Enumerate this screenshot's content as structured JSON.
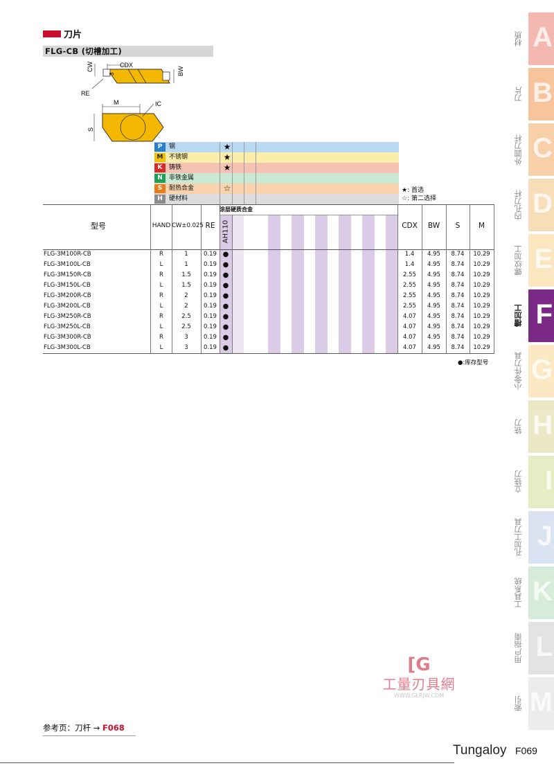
{
  "header": {
    "title": "刀片",
    "subtitle": "FLG-CB (切槽加工)"
  },
  "drawing": {
    "labels": {
      "cw": "CW",
      "cdx": "CDX",
      "bw": "BW",
      "re": "RE",
      "three": "3",
      "m": "M",
      "ic": "IC",
      "s": "S"
    },
    "insert_color": "#f5b800"
  },
  "materials": [
    {
      "code": "P",
      "name": "钢",
      "mark": "★",
      "color": "#2a7fc8",
      "bg": "#b9d9f2"
    },
    {
      "code": "M",
      "name": "不锈钢",
      "mark": "★",
      "color": "#f2c200",
      "bg": "#fbeeaa"
    },
    {
      "code": "K",
      "name": "铸铁",
      "mark": "★",
      "color": "#d62a2a",
      "bg": "#f6c2b3"
    },
    {
      "code": "N",
      "name": "非铁金属",
      "mark": "",
      "color": "#21a05a",
      "bg": "#c9e8d4"
    },
    {
      "code": "S",
      "name": "耐热合金",
      "mark": "☆",
      "color": "#e87b1c",
      "bg": "#f9d3ad"
    },
    {
      "code": "H",
      "name": "硬材料",
      "mark": "",
      "color": "#8c8c8c",
      "bg": "#dcdcdc"
    }
  ],
  "legend": {
    "first": "★: 首选",
    "second": "☆: 第二选择"
  },
  "table": {
    "headers": {
      "model": "型号",
      "hand": "HAND",
      "cw": "CW±0.025",
      "re": "RE",
      "group": "涂层硬质合金",
      "grade": "AH110",
      "cdx": "CDX",
      "bw": "BW",
      "s": "S",
      "m": "M"
    },
    "rows": [
      {
        "model": "FLG-3M100R-CB",
        "hand": "R",
        "cw": "1",
        "re": "0.19",
        "stock": "●",
        "cdx": "1.4",
        "bw": "4.95",
        "s": "8.74",
        "m": "10.29"
      },
      {
        "model": "FLG-3M100L-CB",
        "hand": "L",
        "cw": "1",
        "re": "0.19",
        "stock": "●",
        "cdx": "1.4",
        "bw": "4.95",
        "s": "8.74",
        "m": "10.29"
      },
      {
        "model": "FLG-3M150R-CB",
        "hand": "R",
        "cw": "1.5",
        "re": "0.19",
        "stock": "●",
        "cdx": "2.55",
        "bw": "4.95",
        "s": "8.74",
        "m": "10.29"
      },
      {
        "model": "FLG-3M150L-CB",
        "hand": "L",
        "cw": "1.5",
        "re": "0.19",
        "stock": "●",
        "cdx": "2.55",
        "bw": "4.95",
        "s": "8.74",
        "m": "10.29"
      },
      {
        "model": "FLG-3M200R-CB",
        "hand": "R",
        "cw": "2",
        "re": "0.19",
        "stock": "●",
        "cdx": "2.55",
        "bw": "4.95",
        "s": "8.74",
        "m": "10.29"
      },
      {
        "model": "FLG-3M200L-CB",
        "hand": "L",
        "cw": "2",
        "re": "0.19",
        "stock": "●",
        "cdx": "2.55",
        "bw": "4.95",
        "s": "8.74",
        "m": "10.29"
      },
      {
        "model": "FLG-3M250R-CB",
        "hand": "R",
        "cw": "2.5",
        "re": "0.19",
        "stock": "●",
        "cdx": "4.07",
        "bw": "4.95",
        "s": "8.74",
        "m": "10.29"
      },
      {
        "model": "FLG-3M250L-CB",
        "hand": "L",
        "cw": "2.5",
        "re": "0.19",
        "stock": "●",
        "cdx": "4.07",
        "bw": "4.95",
        "s": "8.74",
        "m": "10.29"
      },
      {
        "model": "FLG-3M300R-CB",
        "hand": "R",
        "cw": "3",
        "re": "0.19",
        "stock": "●",
        "cdx": "4.07",
        "bw": "4.95",
        "s": "8.74",
        "m": "10.29"
      },
      {
        "model": "FLG-3M300L-CB",
        "hand": "L",
        "cw": "3",
        "re": "0.19",
        "stock": "●",
        "cdx": "4.07",
        "bw": "4.95",
        "s": "8.74",
        "m": "10.29"
      }
    ],
    "stock_note": "●:库存型号"
  },
  "tabs": [
    {
      "letter": "A",
      "label": "材质",
      "color": "#f3b8b0",
      "active": false
    },
    {
      "letter": "B",
      "label": "刀片",
      "color": "#f7c49e",
      "active": false
    },
    {
      "letter": "C",
      "label": "外圆刀杆",
      "color": "#f7cfa8",
      "active": false
    },
    {
      "letter": "D",
      "label": "内孔刀杆",
      "color": "#f8deb8",
      "active": false
    },
    {
      "letter": "E",
      "label": "螺纹加工",
      "color": "#fae6bf",
      "active": false
    },
    {
      "letter": "F",
      "label": "槽加工",
      "color": "#7a2a84",
      "active": true
    },
    {
      "letter": "G",
      "label": "小零件刀具",
      "color": "#fae9c2",
      "active": false
    },
    {
      "letter": "H",
      "label": "铣刀",
      "color": "#ebe8c5",
      "active": false
    },
    {
      "letter": "I",
      "label": "立铣刀",
      "color": "#e6edc5",
      "active": false
    },
    {
      "letter": "J",
      "label": "孔加工刀具",
      "color": "#d9e3f2",
      "active": false
    },
    {
      "letter": "K",
      "label": "工具系统",
      "color": "#d6ecd8",
      "active": false
    },
    {
      "letter": "L",
      "label": "用户指南",
      "color": "#e3e3e3",
      "active": false
    },
    {
      "letter": "M",
      "label": "索引",
      "color": "#ececec",
      "active": false
    }
  ],
  "footer": {
    "ref_prefix": "参考页：刀杆 → ",
    "ref_page": "F068",
    "brand": "Tungaloy",
    "page": "F069"
  },
  "watermark": {
    "logo": "[G",
    "text": "工量刃具網",
    "url": "WWW.GLRJW.COM"
  }
}
